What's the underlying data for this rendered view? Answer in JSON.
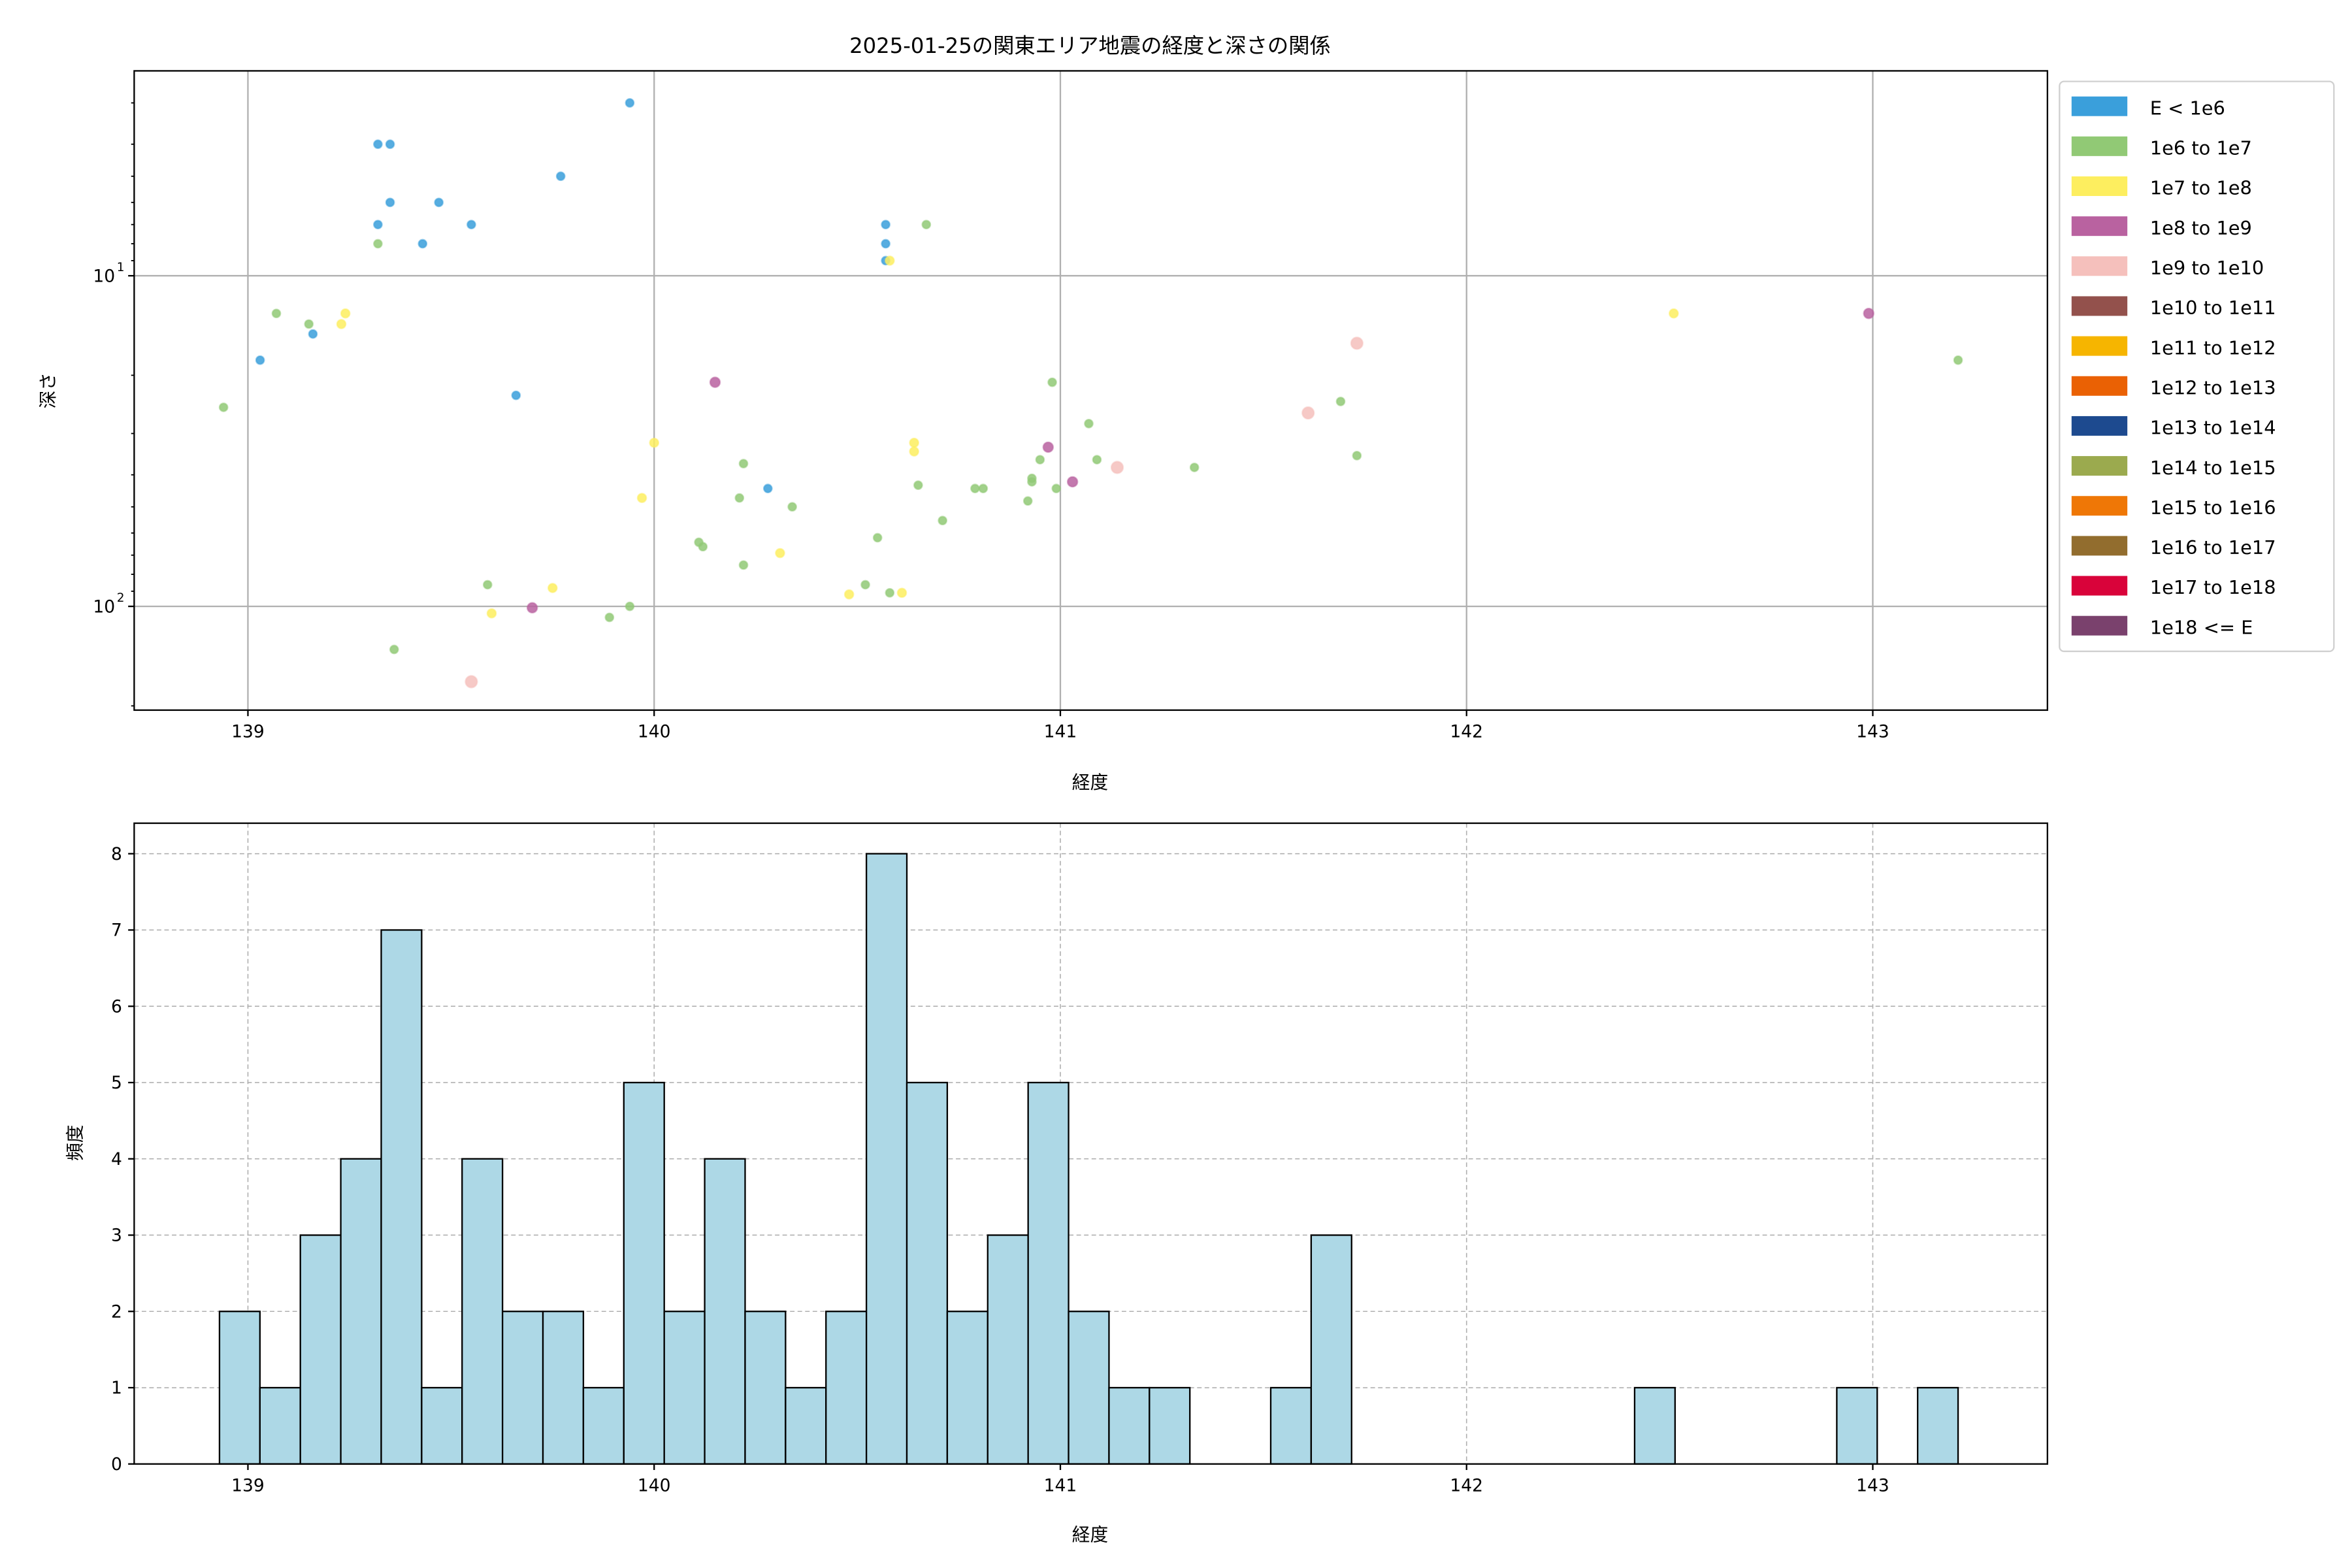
{
  "chart_data": [
    {
      "type": "scatter",
      "title": "2025-01-25の関東エリア地震の経度と深さの関係",
      "xlabel": "経度",
      "ylabel": "深さ",
      "xlim": [
        138.72,
        143.43
      ],
      "ylim": [
        206,
        2.4
      ],
      "yscale": "log",
      "y_inverted": true,
      "grid": true,
      "x_ticks": [
        "139",
        "140",
        "141",
        "142",
        "143"
      ],
      "y_ticks": [
        {
          "value": 10,
          "base": "10",
          "exp": "1"
        },
        {
          "value": 100,
          "base": "10",
          "exp": "2"
        }
      ],
      "legend_placement": "outside-right",
      "legend": [
        {
          "label": "E < 1e6",
          "color": "#3a9fdb"
        },
        {
          "label": "1e6 to 1e7",
          "color": "#91c975"
        },
        {
          "label": "1e7 to 1e8",
          "color": "#fdee5f"
        },
        {
          "label": "1e8 to 1e9",
          "color": "#b962a0"
        },
        {
          "label": "1e9 to 1e10",
          "color": "#f5c0bc"
        },
        {
          "label": "1e10 to 1e11",
          "color": "#93514c"
        },
        {
          "label": "1e11 to 1e12",
          "color": "#f6b500"
        },
        {
          "label": "1e12 to 1e13",
          "color": "#ea6104"
        },
        {
          "label": "1e13 to 1e14",
          "color": "#1d4a8f"
        },
        {
          "label": "1e14 to 1e15",
          "color": "#9baa4e"
        },
        {
          "label": "1e15 to 1e16",
          "color": "#ef7706"
        },
        {
          "label": "1e16 to 1e17",
          "color": "#926d2e"
        },
        {
          "label": "1e17 to 1e18",
          "color": "#d9033a"
        },
        {
          "label": "1e18 <= E",
          "color": "#7a416d"
        }
      ],
      "series": [
        {
          "name": "E < 1e6",
          "points": [
            [
              139.32,
              4
            ],
            [
              139.35,
              4
            ],
            [
              139.35,
              6
            ],
            [
              139.47,
              6
            ],
            [
              139.32,
              7
            ],
            [
              139.55,
              7
            ],
            [
              139.43,
              8
            ],
            [
              139.77,
              5
            ],
            [
              139.94,
              3
            ],
            [
              139.03,
              18
            ],
            [
              139.16,
              15
            ],
            [
              139.66,
              23
            ],
            [
              140.28,
              44
            ],
            [
              140.57,
              7
            ],
            [
              140.57,
              8
            ],
            [
              140.57,
              9
            ]
          ]
        },
        {
          "name": "1e6 to 1e7",
          "points": [
            [
              138.94,
              25
            ],
            [
              139.07,
              13
            ],
            [
              139.15,
              14
            ],
            [
              139.32,
              8
            ],
            [
              140.67,
              7
            ],
            [
              139.59,
              86
            ],
            [
              139.36,
              135
            ],
            [
              139.89,
              108
            ],
            [
              139.94,
              100
            ],
            [
              140.11,
              64
            ],
            [
              140.12,
              66
            ],
            [
              140.22,
              37
            ],
            [
              140.21,
              47
            ],
            [
              140.22,
              75
            ],
            [
              140.34,
              50
            ],
            [
              140.55,
              62
            ],
            [
              140.52,
              86
            ],
            [
              140.58,
              91
            ],
            [
              140.65,
              43
            ],
            [
              140.71,
              55
            ],
            [
              140.79,
              44
            ],
            [
              140.81,
              44
            ],
            [
              140.95,
              36
            ],
            [
              140.93,
              41
            ],
            [
              140.93,
              42
            ],
            [
              140.92,
              48
            ],
            [
              140.98,
              21
            ],
            [
              140.99,
              44
            ],
            [
              141.07,
              28
            ],
            [
              141.09,
              36
            ],
            [
              141.33,
              38
            ],
            [
              141.69,
              24
            ],
            [
              141.73,
              35
            ],
            [
              143.21,
              18
            ]
          ]
        },
        {
          "name": "1e7 to 1e8",
          "points": [
            [
              139.24,
              13
            ],
            [
              139.23,
              14
            ],
            [
              140.58,
              9
            ],
            [
              140.0,
              32
            ],
            [
              139.97,
              47
            ],
            [
              140.31,
              69
            ],
            [
              139.75,
              88
            ],
            [
              139.6,
              105
            ],
            [
              140.48,
              92
            ],
            [
              140.61,
              91
            ],
            [
              140.64,
              32
            ],
            [
              140.64,
              34
            ],
            [
              142.51,
              13
            ]
          ]
        },
        {
          "name": "1e8 to 1e9",
          "points": [
            [
              140.15,
              21
            ],
            [
              139.7,
              101
            ],
            [
              140.97,
              33
            ],
            [
              141.03,
              42
            ],
            [
              142.99,
              13
            ]
          ]
        },
        {
          "name": "1e9 to 1e10",
          "points": [
            [
              139.55,
              169
            ],
            [
              141.14,
              38
            ],
            [
              141.61,
              26
            ],
            [
              141.73,
              16
            ]
          ]
        }
      ]
    },
    {
      "type": "bar",
      "subtype": "histogram",
      "xlabel": "経度",
      "ylabel": "頻度",
      "xlim": [
        138.72,
        143.43
      ],
      "ylim": [
        0,
        8.4
      ],
      "grid": true,
      "grid_style": "dashed",
      "bar_color": "#add8e6",
      "edge_color": "#000000",
      "x_ticks": [
        "139",
        "140",
        "141",
        "142",
        "143"
      ],
      "y_ticks": [
        "0",
        "1",
        "2",
        "3",
        "4",
        "5",
        "6",
        "7",
        "8"
      ],
      "bin_range": [
        138.93,
        143.21
      ],
      "counts": [
        2,
        1,
        3,
        4,
        7,
        1,
        4,
        2,
        2,
        1,
        5,
        2,
        4,
        2,
        1,
        2,
        8,
        5,
        2,
        3,
        5,
        2,
        1,
        1,
        0,
        0,
        1,
        3,
        0,
        0,
        0,
        0,
        0,
        0,
        0,
        1,
        0,
        0,
        0,
        0,
        1,
        0,
        1
      ]
    }
  ]
}
